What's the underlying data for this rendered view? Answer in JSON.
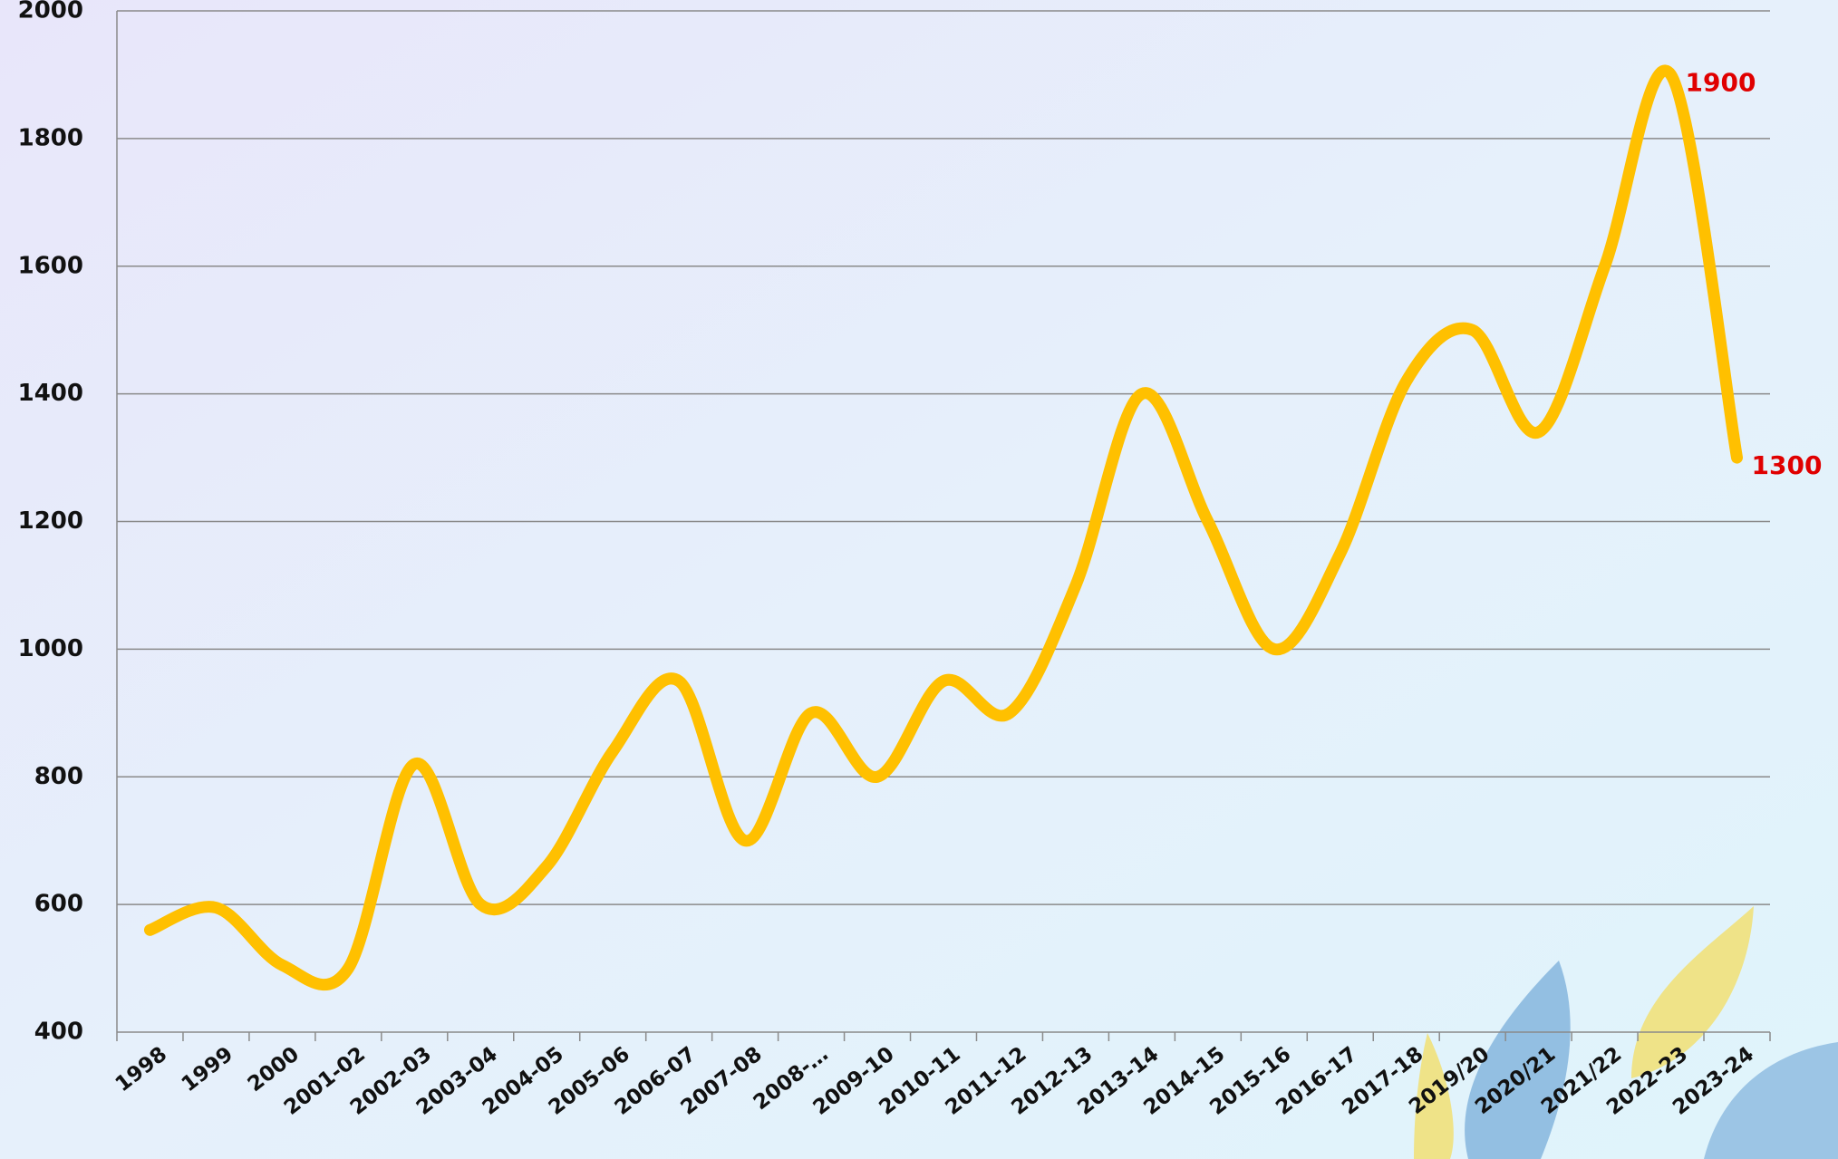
{
  "chart_data": {
    "type": "line",
    "categories": [
      "1998",
      "1999",
      "2000",
      "2001-02",
      "2002-03",
      "2003-04",
      "2004-05",
      "2005-06",
      "2006-07",
      "2007-08",
      "2008-…",
      "2009-10",
      "2010-11",
      "2011-12",
      "2012-13",
      "2013-14",
      "2014-15",
      "2015-16",
      "2016-17",
      "2017-18",
      "2019/20",
      "2020/21",
      "2021/22",
      "2022-23",
      "2023-24"
    ],
    "series": [
      {
        "color": "#ffc000",
        "values": [
          560,
          595,
          505,
          500,
          820,
          600,
          660,
          840,
          950,
          700,
          900,
          800,
          950,
          900,
          1100,
          1400,
          1200,
          1000,
          1150,
          1420,
          1500,
          1340,
          1600,
          1900,
          1300
        ]
      }
    ],
    "labeled_points": [
      23,
      24
    ],
    "label_color": "#e00000",
    "ylim": [
      400,
      2000
    ],
    "yticks": [
      400,
      600,
      800,
      1000,
      1200,
      1400,
      1600,
      1800,
      2000
    ],
    "grid": true
  }
}
